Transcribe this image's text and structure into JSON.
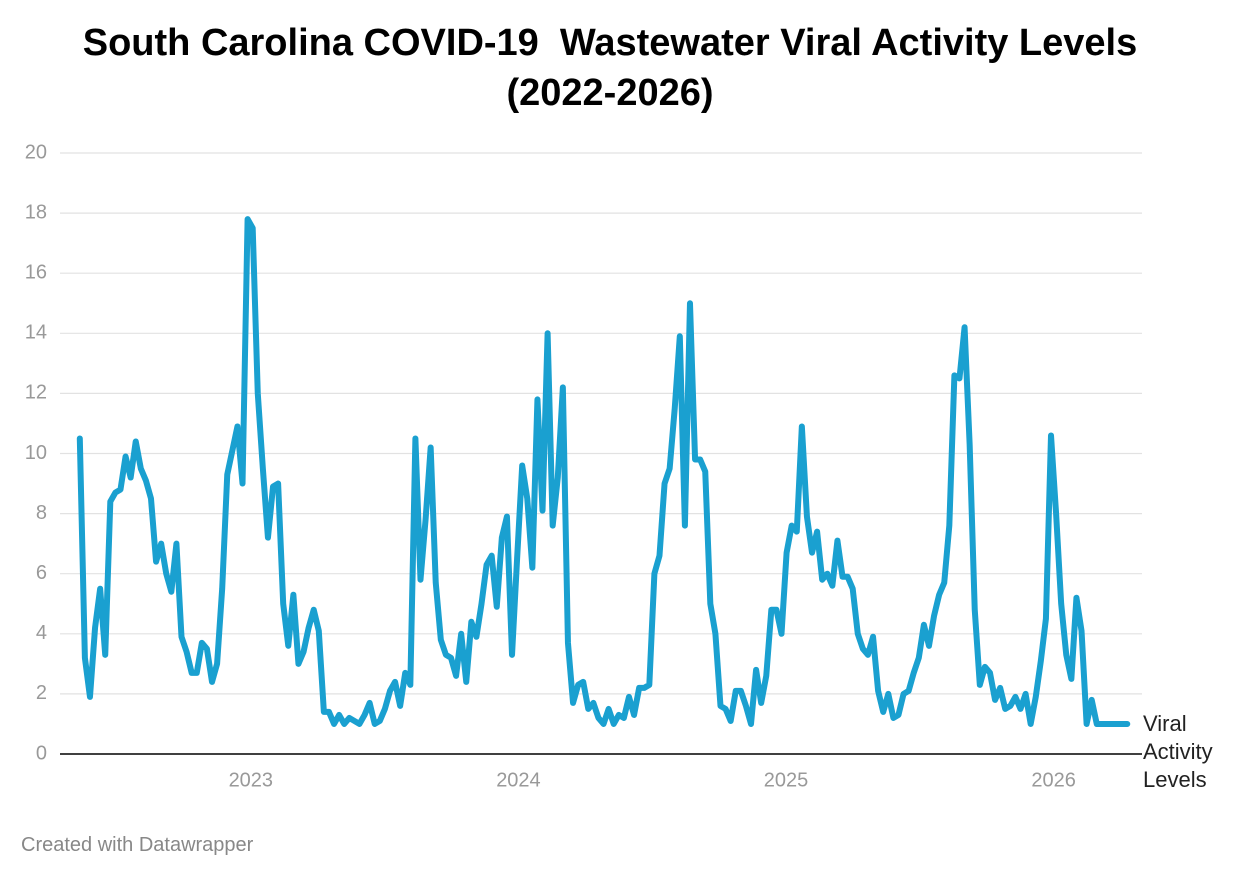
{
  "chart_data": {
    "type": "line",
    "title": "South Carolina COVID-19  Wastewater Viral Activity Levels (2022-2026)",
    "footer": "Created with Datawrapper",
    "x": [
      2022.361,
      2022.38,
      2022.399,
      2022.418,
      2022.437,
      2022.456,
      2022.475,
      2022.494,
      2022.513,
      2022.532,
      2022.551,
      2022.57,
      2022.589,
      2022.608,
      2022.627,
      2022.646,
      2022.665,
      2022.684,
      2022.703,
      2022.722,
      2022.741,
      2022.76,
      2022.779,
      2022.798,
      2022.817,
      2022.836,
      2022.855,
      2022.874,
      2022.893,
      2022.912,
      2022.931,
      2022.95,
      2022.969,
      2022.988,
      2023.007,
      2023.026,
      2023.045,
      2023.064,
      2023.083,
      2023.102,
      2023.121,
      2023.14,
      2023.159,
      2023.178,
      2023.197,
      2023.216,
      2023.235,
      2023.254,
      2023.273,
      2023.292,
      2023.311,
      2023.33,
      2023.349,
      2023.368,
      2023.387,
      2023.406,
      2023.425,
      2023.444,
      2023.463,
      2023.482,
      2023.501,
      2023.52,
      2023.539,
      2023.558,
      2023.577,
      2023.596,
      2023.615,
      2023.634,
      2023.653,
      2023.672,
      2023.691,
      2023.71,
      2023.729,
      2023.748,
      2023.767,
      2023.786,
      2023.805,
      2023.824,
      2023.843,
      2023.862,
      2023.881,
      2023.9,
      2023.919,
      2023.938,
      2023.957,
      2023.976,
      2023.995,
      2024.014,
      2024.033,
      2024.052,
      2024.071,
      2024.09,
      2024.109,
      2024.128,
      2024.147,
      2024.166,
      2024.185,
      2024.204,
      2024.223,
      2024.242,
      2024.261,
      2024.28,
      2024.299,
      2024.318,
      2024.337,
      2024.356,
      2024.375,
      2024.394,
      2024.413,
      2024.432,
      2024.451,
      2024.47,
      2024.489,
      2024.508,
      2024.527,
      2024.546,
      2024.565,
      2024.584,
      2024.603,
      2024.622,
      2024.641,
      2024.66,
      2024.679,
      2024.698,
      2024.717,
      2024.736,
      2024.755,
      2024.774,
      2024.793,
      2024.812,
      2024.831,
      2024.85,
      2024.869,
      2024.888,
      2024.907,
      2024.926,
      2024.945,
      2024.964,
      2024.983,
      2025.002,
      2025.021,
      2025.04,
      2025.059,
      2025.078,
      2025.097,
      2025.116,
      2025.135,
      2025.154,
      2025.173,
      2025.192,
      2025.211,
      2025.23,
      2025.249,
      2025.268,
      2025.287,
      2025.306,
      2025.325,
      2025.344,
      2025.363,
      2025.382,
      2025.401,
      2025.42,
      2025.439,
      2025.458,
      2025.477,
      2025.496,
      2025.515,
      2025.534,
      2025.553,
      2025.572,
      2025.591,
      2025.61,
      2025.629,
      2025.648,
      2025.667,
      2025.686,
      2025.705,
      2025.724,
      2025.743,
      2025.762,
      2025.781,
      2025.8,
      2025.819,
      2025.838,
      2025.857,
      2025.876,
      2025.895,
      2025.914,
      2025.933,
      2025.952,
      2025.971,
      2025.99,
      2026.009,
      2026.028,
      2026.047,
      2026.066,
      2026.085,
      2026.104,
      2026.123,
      2026.142,
      2026.161,
      2026.18,
      2026.199,
      2026.218,
      2026.237,
      2026.256,
      2026.275
    ],
    "series": [
      {
        "name": "Viral Activity Levels",
        "color": "#1aa0d0",
        "values": [
          10.5,
          3.2,
          1.9,
          4.2,
          5.5,
          3.3,
          8.4,
          8.7,
          8.8,
          9.9,
          9.2,
          10.4,
          9.5,
          9.1,
          8.5,
          6.4,
          7.0,
          6.0,
          5.4,
          7.0,
          3.9,
          3.4,
          2.7,
          2.7,
          3.7,
          3.5,
          2.4,
          3.0,
          5.5,
          9.3,
          10.1,
          10.9,
          9.0,
          17.8,
          17.5,
          12.0,
          9.5,
          7.2,
          8.9,
          9.0,
          5.0,
          3.6,
          5.3,
          3.0,
          3.4,
          4.2,
          4.8,
          4.1,
          1.4,
          1.4,
          1.0,
          1.3,
          1.0,
          1.2,
          1.1,
          1.0,
          1.3,
          1.7,
          1.0,
          1.1,
          1.5,
          2.1,
          2.4,
          1.6,
          2.7,
          2.3,
          10.5,
          5.8,
          7.8,
          10.2,
          5.7,
          3.8,
          3.3,
          3.2,
          2.6,
          4.0,
          2.4,
          4.4,
          3.9,
          5.0,
          6.3,
          6.6,
          4.9,
          7.2,
          7.9,
          3.3,
          6.5,
          9.6,
          8.5,
          6.2,
          11.8,
          8.1,
          14.0,
          7.6,
          9.2,
          12.2,
          3.7,
          1.7,
          2.3,
          2.4,
          1.5,
          1.7,
          1.2,
          1.0,
          1.5,
          1.0,
          1.3,
          1.2,
          1.9,
          1.3,
          2.2,
          2.2,
          2.3,
          6.0,
          6.6,
          9.0,
          9.5,
          11.5,
          13.9,
          7.6,
          15.0,
          9.8,
          9.8,
          9.4,
          5.0,
          4.0,
          1.6,
          1.5,
          1.1,
          2.1,
          2.1,
          1.6,
          1.0,
          2.8,
          1.7,
          2.6,
          4.8,
          4.8,
          4.0,
          6.7,
          7.6,
          7.4,
          10.9,
          7.9,
          6.7,
          7.4,
          5.8,
          6.0,
          5.6,
          7.1,
          5.9,
          5.9,
          5.5,
          4.0,
          3.5,
          3.3,
          3.9,
          2.1,
          1.4,
          2.0,
          1.2,
          1.3,
          2.0,
          2.1,
          2.7,
          3.2,
          4.3,
          3.6,
          4.6,
          5.3,
          5.7,
          7.6,
          12.6,
          12.5,
          14.2,
          10.3,
          4.8,
          2.3,
          2.9,
          2.7,
          1.8,
          2.2,
          1.5,
          1.6,
          1.9,
          1.5,
          2.0,
          1.0,
          1.9,
          3.1,
          4.5,
          10.6,
          8.0,
          5.0,
          3.3,
          2.5,
          5.2,
          4.1,
          1.0,
          1.8,
          1.0,
          1.0,
          1.0,
          1.0,
          1.0,
          1.0,
          1.0
        ]
      }
    ],
    "xlim": [
      2022.287,
      2026.33
    ],
    "xticks": [
      2023,
      2024,
      2025,
      2026
    ],
    "ylim": [
      0,
      20
    ],
    "yticks": [
      0,
      2,
      4,
      6,
      8,
      10,
      12,
      14,
      16,
      18,
      20
    ],
    "grid": true
  }
}
